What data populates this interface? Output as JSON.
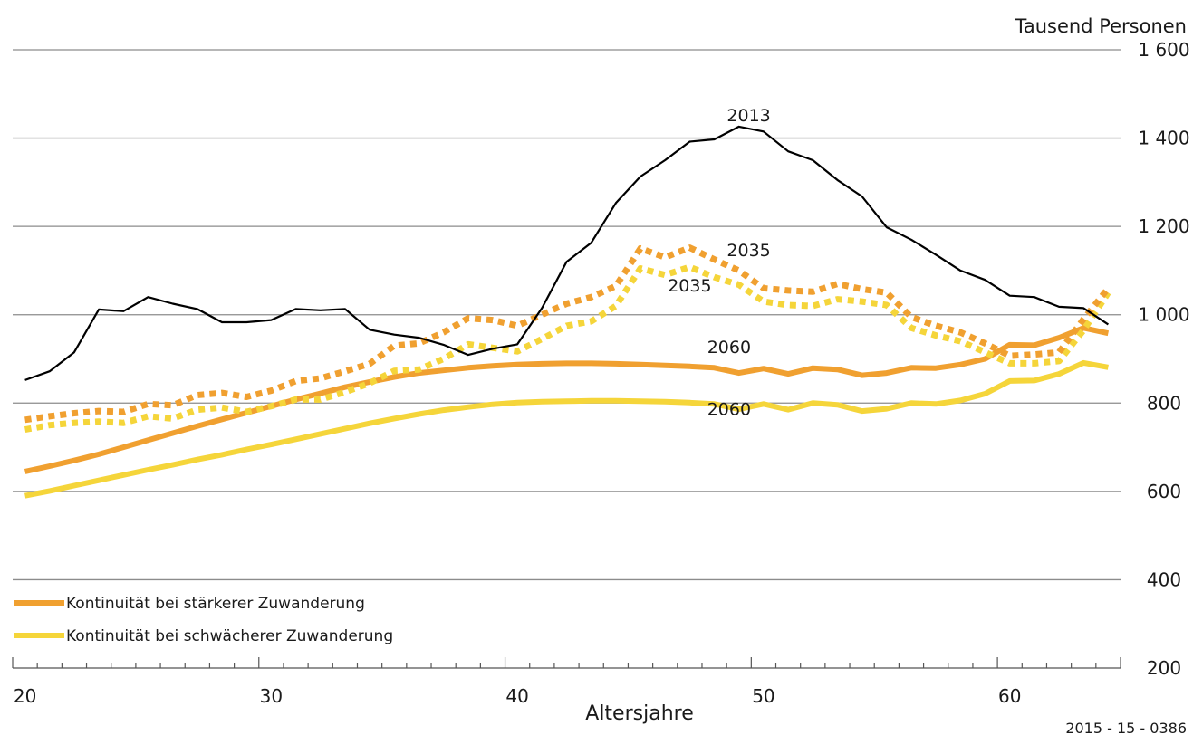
{
  "chart_data": {
    "type": "line",
    "title": "",
    "xlabel": "Altersjahre",
    "ylabel": "Tausend Personen",
    "source": "2015 - 15 - 0386",
    "xlim": [
      20,
      64
    ],
    "ylim": [
      200,
      1600
    ],
    "x_ticks": [
      20,
      30,
      40,
      50,
      60
    ],
    "y_ticks": [
      200,
      400,
      600,
      800,
      1000,
      1200,
      1400,
      1600
    ],
    "y_tick_labels": [
      "200",
      "400",
      "600",
      "800",
      "1 000",
      "1 200",
      "1 400",
      "1 600"
    ],
    "x_tick_labels": [
      "20",
      "30",
      "40",
      "50",
      "60"
    ],
    "grid": true,
    "legend_position": "bottom-left",
    "legend": [
      {
        "label": "Kontinuität bei stärkerer Zuwanderung",
        "color": "#f0a030"
      },
      {
        "label": "Kontinuität bei schwächerer Zuwanderung",
        "color": "#f5d53a"
      }
    ],
    "x": [
      20,
      21,
      22,
      23,
      24,
      25,
      26,
      27,
      28,
      29,
      30,
      31,
      32,
      33,
      34,
      35,
      36,
      37,
      38,
      39,
      40,
      41,
      42,
      43,
      44,
      45,
      46,
      47,
      48,
      49,
      50,
      51,
      52,
      53,
      54,
      55,
      56,
      57,
      58,
      59,
      60,
      61,
      62,
      63,
      64
    ],
    "series": [
      {
        "label": "2013",
        "color": "#000000",
        "style": "solid",
        "values": [
          852,
          872,
          915,
          1012,
          1008,
          1040,
          1025,
          1013,
          983,
          983,
          988,
          1013,
          1010,
          1013,
          966,
          955,
          948,
          932,
          909,
          923,
          933,
          1015,
          1120,
          1163,
          1253,
          1313,
          1350,
          1392,
          1397,
          1426,
          1415,
          1370,
          1350,
          1305,
          1268,
          1198,
          1170,
          1136,
          1100,
          1079,
          1043,
          1040,
          1018,
          1015,
          978
        ]
      },
      {
        "label": "2035",
        "color": "#f0a030",
        "style": "dotted",
        "values": [
          762,
          770,
          777,
          782,
          780,
          798,
          795,
          818,
          823,
          814,
          828,
          850,
          856,
          872,
          889,
          930,
          935,
          960,
          992,
          988,
          975,
          1000,
          1025,
          1040,
          1065,
          1150,
          1130,
          1152,
          1125,
          1100,
          1060,
          1055,
          1052,
          1070,
          1058,
          1050,
          995,
          975,
          960,
          935,
          907,
          910,
          915,
          990,
          1060
        ]
      },
      {
        "label": "2035",
        "color": "#f5d53a",
        "style": "dotted",
        "values": [
          740,
          750,
          755,
          758,
          755,
          770,
          765,
          785,
          790,
          780,
          793,
          808,
          808,
          825,
          845,
          873,
          876,
          900,
          933,
          925,
          917,
          945,
          975,
          985,
          1020,
          1105,
          1090,
          1108,
          1085,
          1068,
          1030,
          1022,
          1020,
          1035,
          1030,
          1022,
          970,
          953,
          940,
          915,
          890,
          890,
          895,
          965,
          1050
        ]
      },
      {
        "label": "2060",
        "color": "#f0a030",
        "style": "solid",
        "values": [
          645,
          657,
          670,
          684,
          700,
          716,
          732,
          748,
          763,
          778,
          793,
          808,
          822,
          836,
          848,
          859,
          868,
          874,
          880,
          884,
          887,
          889,
          890,
          890,
          889,
          887,
          885,
          883,
          880,
          868,
          878,
          866,
          879,
          876,
          863,
          868,
          880,
          879,
          887,
          900,
          932,
          931,
          948,
          970,
          958
        ]
      },
      {
        "label": "2060",
        "color": "#f5d53a",
        "style": "solid",
        "values": [
          590,
          601,
          613,
          625,
          637,
          649,
          660,
          672,
          683,
          695,
          706,
          718,
          730,
          742,
          754,
          765,
          775,
          784,
          791,
          797,
          801,
          803,
          804,
          805,
          805,
          804,
          803,
          801,
          798,
          786,
          798,
          785,
          800,
          796,
          782,
          787,
          800,
          798,
          806,
          821,
          850,
          851,
          866,
          891,
          881
        ]
      }
    ],
    "annotations": [
      {
        "text": "2013",
        "x": 49.4,
        "y": 1438
      },
      {
        "text": "2035",
        "x": 49.4,
        "y": 1133
      },
      {
        "text": "2035",
        "x": 47.0,
        "y": 1053
      },
      {
        "text": "2060",
        "x": 48.6,
        "y": 913
      },
      {
        "text": "2060",
        "x": 48.6,
        "y": 773
      }
    ]
  }
}
